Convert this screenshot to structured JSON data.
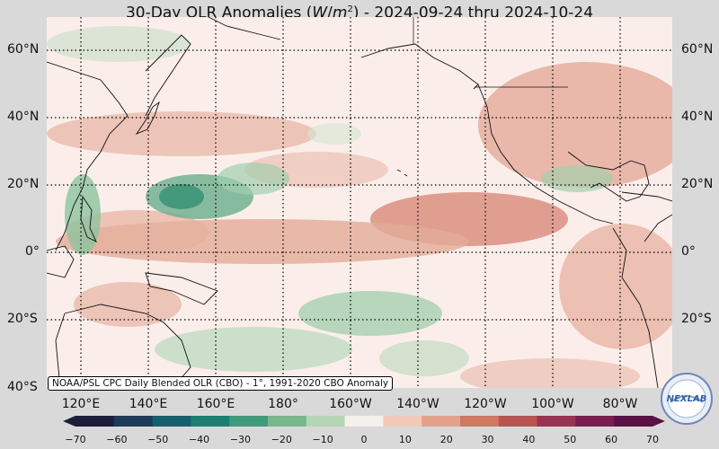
{
  "title": "30-Day OLR Anomalies (W/m²) - 2024-09-24 thru 2024-10-24",
  "credit": "NOAA/PSL CPC Daily Blended OLR (CBO) - 1°, 1991-2020 CBO Anomaly",
  "lat_labels": [
    "60°N",
    "40°N",
    "20°N",
    "0°",
    "20°S",
    "40°S"
  ],
  "lon_labels": [
    "120°E",
    "140°E",
    "160°E",
    "180°",
    "160°W",
    "140°W",
    "120°W",
    "100°W",
    "80°W"
  ],
  "colorbar": {
    "ticks": [
      "−70",
      "−60",
      "−50",
      "−40",
      "−30",
      "−20",
      "−10",
      "0",
      "10",
      "20",
      "30",
      "40",
      "50",
      "60",
      "70"
    ],
    "colors": [
      "#1d1e3a",
      "#1f3b5a",
      "#16606e",
      "#1b7f74",
      "#3f9b7c",
      "#79b88d",
      "#b5d6b4",
      "#f4f1ec",
      "#f1c9b8",
      "#e2a18a",
      "#cf7863",
      "#b85553",
      "#9a3352",
      "#7a1d4f",
      "#5a1244"
    ]
  },
  "logo_text": "NEXLAB"
}
